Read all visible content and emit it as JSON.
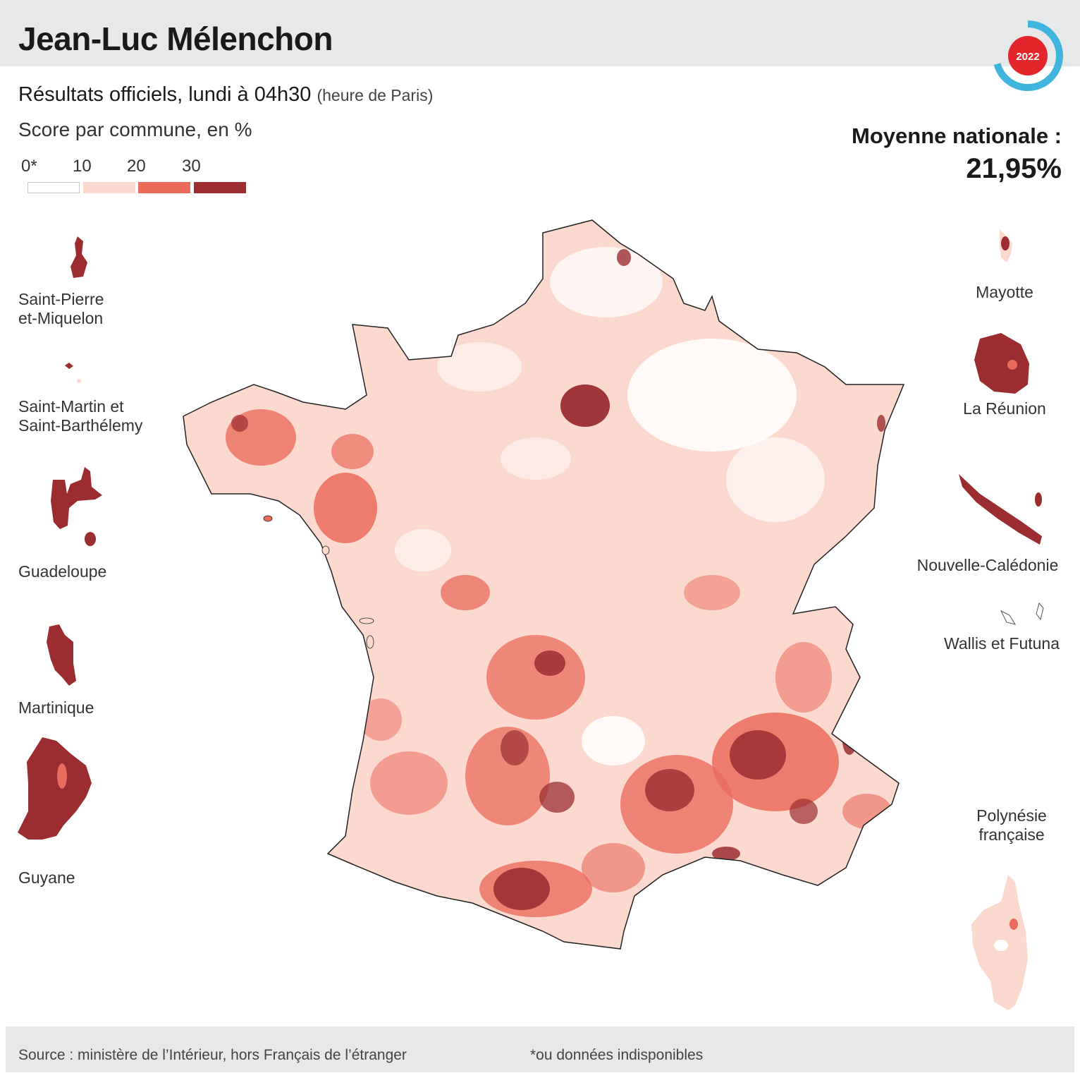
{
  "header": {
    "title": "Jean-Luc Mélenchon",
    "badge_year": "2022"
  },
  "subtitle": {
    "main": "Résultats officiels, lundi à 04h30",
    "note": "(heure de Paris)"
  },
  "unit_label": "Score par commune, en %",
  "national_average": {
    "label": "Moyenne nationale :",
    "value": "21,95%"
  },
  "legend": {
    "ticks": [
      "0*",
      "10",
      "20",
      "30"
    ],
    "classes": [
      {
        "range": "0–10",
        "color": "#ffffff"
      },
      {
        "range": "10–20",
        "color": "#fcd9cf"
      },
      {
        "range": "20–30",
        "color": "#ea6b5b"
      },
      {
        "range": "30+",
        "color": "#9b2d31"
      }
    ]
  },
  "territories_left": [
    {
      "name": "Saint-Pierre\net-Miquelon",
      "line1": "Saint-Pierre",
      "line2": "et-Miquelon"
    },
    {
      "name": "Saint-Martin et Saint-Barthélemy",
      "line1": "Saint-Martin et",
      "line2": "Saint-Barthélemy"
    },
    {
      "name": "Guadeloupe",
      "line1": "Guadeloupe"
    },
    {
      "name": "Martinique",
      "line1": "Martinique"
    },
    {
      "name": "Guyane",
      "line1": "Guyane"
    }
  ],
  "territories_right": [
    {
      "name": "Mayotte",
      "line1": "Mayotte"
    },
    {
      "name": "La Réunion",
      "line1": "La Réunion"
    },
    {
      "name": "Nouvelle-Calédonie",
      "line1": "Nouvelle-Calédonie"
    },
    {
      "name": "Wallis et Futuna",
      "line1": "Wallis et Futuna"
    },
    {
      "name": "Polynésie française",
      "line1": "Polynésie",
      "line2": "française"
    }
  ],
  "footer": {
    "source": "Source : ministère de l’Intérieur, hors Français de l’étranger",
    "note": "*ou données indisponibles"
  },
  "colors": {
    "white": "#ffffff",
    "light": "#fcd9cf",
    "mid": "#ea6b5b",
    "dark": "#9b2d31",
    "badge_red": "#e2262b",
    "badge_blue": "#3fb4dc",
    "band_gray": "#e6e8ea"
  }
}
